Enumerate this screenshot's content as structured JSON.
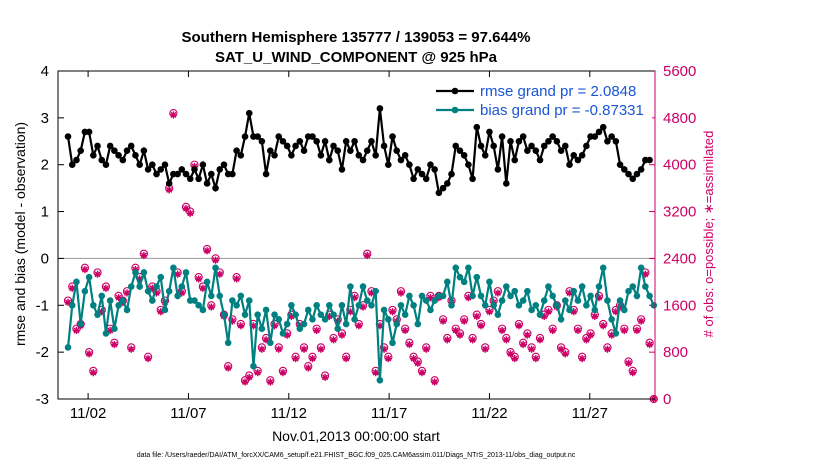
{
  "chart_data": {
    "type": "line",
    "title_line1": "Southern Hemisphere 135777 / 139053 = 97.644%",
    "title_line2": "SAT_U_WIND_COMPONENT @ 925 hPa",
    "xlabel": "Nov.01,2013 00:00:00 start",
    "ylabel": "rmse and bias (model - observation)",
    "y2label": "# of obs: o=possible; ∗=assimilated",
    "footer": "data file: /Users/raeder/DAI/ATM_forcXX/CAM6_setup/f.e21.FHIST_BGC.f09_025.CAM6assim.011/Diags_NTrS_2013-11/obs_diag_output.nc",
    "xlim": [
      0.5,
      30.25
    ],
    "ylim": [
      -3,
      4
    ],
    "y2lim": [
      0,
      5600
    ],
    "x_ticks": [
      {
        "v": 2,
        "label": "11/02"
      },
      {
        "v": 7,
        "label": "11/07"
      },
      {
        "v": 12,
        "label": "11/12"
      },
      {
        "v": 17,
        "label": "11/17"
      },
      {
        "v": 22,
        "label": "11/22"
      },
      {
        "v": 27,
        "label": "11/27"
      }
    ],
    "y_ticks": [
      {
        "v": -3,
        "label": "-3"
      },
      {
        "v": -2,
        "label": "-2"
      },
      {
        "v": -1,
        "label": "-1"
      },
      {
        "v": 0,
        "label": "0"
      },
      {
        "v": 1,
        "label": "1"
      },
      {
        "v": 2,
        "label": "2"
      },
      {
        "v": 3,
        "label": "3"
      },
      {
        "v": 4,
        "label": "4"
      }
    ],
    "y2_ticks": [
      {
        "v": 0,
        "label": "0"
      },
      {
        "v": 800,
        "label": "800"
      },
      {
        "v": 1600,
        "label": "1600"
      },
      {
        "v": 2400,
        "label": "2400"
      },
      {
        "v": 3200,
        "label": "3200"
      },
      {
        "v": 4000,
        "label": "4000"
      },
      {
        "v": 4800,
        "label": "4800"
      },
      {
        "v": 5600,
        "label": "5600"
      }
    ],
    "series": [
      {
        "name": "rmse grand pr = 2.0848",
        "color": "#000000",
        "axis": "left",
        "values": [
          2.6,
          2.0,
          2.1,
          2.3,
          2.7,
          2.7,
          2.2,
          2.4,
          2.1,
          2.0,
          2.4,
          2.3,
          2.2,
          2.1,
          2.3,
          2.4,
          2.2,
          2.0,
          2.3,
          1.9,
          2.0,
          1.8,
          1.9,
          2.0,
          1.6,
          1.8,
          1.8,
          1.9,
          1.8,
          1.7,
          1.9,
          1.7,
          2.0,
          1.6,
          1.8,
          1.5,
          1.9,
          2.0,
          1.8,
          1.8,
          2.3,
          2.2,
          2.6,
          3.1,
          2.6,
          2.6,
          2.5,
          1.8,
          2.3,
          2.2,
          2.6,
          2.5,
          2.4,
          2.2,
          2.4,
          2.5,
          2.3,
          2.6,
          2.6,
          2.5,
          2.2,
          2.5,
          2.1,
          2.4,
          2.3,
          1.9,
          2.5,
          2.3,
          2.5,
          2.2,
          2.1,
          2.3,
          2.5,
          2.2,
          3.2,
          2.4,
          2.0,
          2.6,
          2.3,
          2.1,
          2.2,
          2.0,
          1.7,
          1.9,
          1.8,
          1.7,
          2.0,
          1.9,
          1.4,
          1.5,
          1.6,
          1.8,
          2.4,
          2.3,
          2.2,
          2.0,
          1.7,
          2.8,
          2.4,
          2.2,
          2.7,
          2.4,
          1.9,
          2.6,
          1.6,
          2.5,
          2.1,
          2.5,
          2.6,
          2.3,
          2.4,
          2.3,
          2.1,
          2.4,
          2.5,
          2.6,
          2.5,
          2.3,
          2.4,
          2.0,
          2.2,
          2.1,
          2.2,
          2.4,
          2.6,
          2.6,
          2.7,
          2.8,
          2.5,
          2.6,
          2.5,
          2.0,
          1.9,
          1.8,
          1.7,
          1.8,
          1.9,
          2.1,
          2.1
        ]
      },
      {
        "name": "bias grand pr = -0.87331",
        "color": "#008080",
        "axis": "left",
        "values": [
          -1.9,
          -1.0,
          -0.5,
          -1.4,
          -0.7,
          -0.4,
          -1.0,
          -1.2,
          -0.8,
          -1.6,
          -0.9,
          -1.5,
          -1.0,
          -0.9,
          -1.1,
          -0.6,
          -0.3,
          -0.6,
          -0.3,
          -0.7,
          -0.9,
          -0.6,
          -0.4,
          -1.1,
          -0.7,
          -0.2,
          -0.8,
          -0.6,
          -0.3,
          -0.9,
          -0.9,
          -1.0,
          -1.1,
          -0.5,
          -0.8,
          -0.2,
          -0.8,
          -1.2,
          -1.8,
          -0.9,
          -1.0,
          -0.8,
          -1.2,
          -0.9,
          -2.3,
          -1.2,
          -1.5,
          -1.1,
          -1.8,
          -1.2,
          -1.3,
          -1.6,
          -1.4,
          -1.0,
          -1.2,
          -1.5,
          -1.4,
          -1.1,
          -1.3,
          -1.0,
          -1.2,
          -1.3,
          -1.0,
          -1.2,
          -1.5,
          -1.0,
          -1.4,
          -0.6,
          -1.3,
          -1.0,
          -0.6,
          -0.9,
          -1.0,
          -0.7,
          -2.6,
          -1.1,
          -1.3,
          -1.8,
          -1.4,
          -1.0,
          -1.2,
          -0.8,
          -1.0,
          -1.4,
          -0.8,
          -0.9,
          -1.1,
          -0.9,
          -0.8,
          -0.8,
          -0.5,
          -1.0,
          -0.2,
          -0.4,
          -0.5,
          -0.2,
          -0.8,
          -0.4,
          -0.8,
          -1.0,
          -0.5,
          -1.0,
          -1.2,
          -0.9,
          -0.6,
          -0.8,
          -0.7,
          -1.0,
          -0.9,
          -0.7,
          -1.1,
          -1.0,
          -1.2,
          -0.9,
          -0.6,
          -0.8,
          -1.0,
          -1.3,
          -0.9,
          -1.1,
          -0.7,
          -0.9,
          -0.6,
          -1.0,
          -0.8,
          -1.1,
          -0.6,
          -0.2,
          -0.9,
          -1.3,
          -1.6,
          -0.9,
          -1.1,
          -0.7,
          -0.6,
          -0.8,
          -0.2,
          -0.6,
          -0.8,
          -1.0,
          -0.7
        ]
      },
      {
        "name": "possible",
        "marker": "o",
        "color": "#cc0066",
        "axis": "right",
        "values": [
          1680,
          1920,
          1200,
          1280,
          2240,
          800,
          480,
          2160,
          1520,
          1920,
          1200,
          960,
          1760,
          1680,
          1840,
          880,
          2240,
          2080,
          2480,
          720,
          1920,
          1840,
          1520,
          1680,
          3600,
          4880,
          2160,
          1840,
          3280,
          3200,
          4000,
          2080,
          1920,
          2560,
          1600,
          2400,
          2160,
          1440,
          560,
          1360,
          2080,
          1280,
          320,
          400,
          1280,
          480,
          880,
          1040,
          320,
          1280,
          880,
          480,
          1120,
          1440,
          720,
          1280,
          880,
          560,
          720,
          1200,
          880,
          400,
          1440,
          1040,
          1360,
          1120,
          720,
          1520,
          1760,
          1280,
          1600,
          2480,
          1840,
          480,
          1280,
          880,
          720,
          1520,
          1360,
          1840,
          1200,
          960,
          720,
          640,
          480,
          880,
          1760,
          320,
          1760,
          1360,
          1040,
          1680,
          1200,
          1120,
          1360,
          1760,
          1040,
          1440,
          1280,
          880,
          1520,
          1680,
          1840,
          1200,
          1040,
          800,
          720,
          1280,
          960,
          1120,
          880,
          720,
          1040,
          1440,
          1520,
          1200,
          1600,
          880,
          800,
          1840,
          1520,
          1200,
          720,
          1040,
          1120,
          1440,
          1760,
          1280,
          880,
          1120,
          1520,
          1600,
          1200,
          640,
          480,
          1200,
          1360,
          2160,
          960,
          0
        ]
      },
      {
        "name": "assimilated",
        "marker": "*",
        "color": "#cc0066",
        "axis": "right",
        "values": [
          1650,
          1890,
          1170,
          1250,
          2210,
          770,
          450,
          2130,
          1490,
          1890,
          1170,
          930,
          1730,
          1650,
          1810,
          850,
          2210,
          2050,
          2450,
          690,
          1890,
          1810,
          1490,
          1650,
          3570,
          4850,
          2130,
          1810,
          3250,
          3170,
          3970,
          2050,
          1890,
          2530,
          1570,
          2370,
          2130,
          1410,
          530,
          1330,
          2050,
          1250,
          290,
          370,
          1250,
          450,
          850,
          1010,
          290,
          1250,
          850,
          450,
          1090,
          1410,
          690,
          1250,
          850,
          530,
          690,
          1170,
          850,
          370,
          1410,
          1010,
          1330,
          1090,
          690,
          1490,
          1730,
          1250,
          1570,
          2450,
          1810,
          450,
          1250,
          850,
          690,
          1490,
          1330,
          1810,
          1170,
          930,
          690,
          610,
          450,
          850,
          1730,
          290,
          1730,
          1330,
          1010,
          1650,
          1170,
          1090,
          1330,
          1730,
          1010,
          1410,
          1250,
          850,
          1490,
          1650,
          1810,
          1170,
          1010,
          770,
          690,
          1250,
          930,
          1090,
          850,
          690,
          1010,
          1410,
          1490,
          1170,
          1570,
          850,
          770,
          1810,
          1490,
          1170,
          690,
          1010,
          1090,
          1410,
          1730,
          1250,
          850,
          1090,
          1490,
          1570,
          1170,
          610,
          450,
          1170,
          1330,
          2130,
          930,
          0
        ]
      }
    ],
    "legend": {
      "position": "top-right"
    }
  }
}
